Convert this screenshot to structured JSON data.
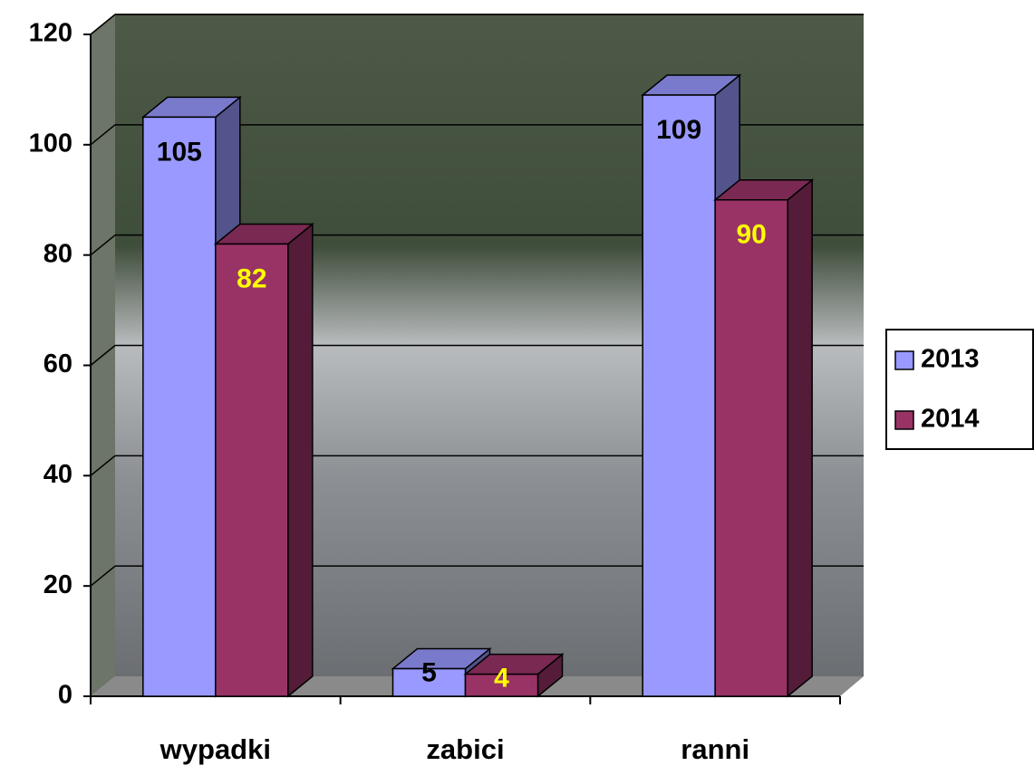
{
  "chart_data": {
    "type": "bar3d",
    "categories": [
      "wypadki",
      "zabici",
      "ranni"
    ],
    "series": [
      {
        "name": "2013",
        "color": "#9999ff",
        "label_color": "#000000",
        "values": [
          105,
          5,
          109
        ]
      },
      {
        "name": "2014",
        "color": "#993366",
        "label_color": "#ffff00",
        "values": [
          82,
          4,
          90
        ]
      }
    ],
    "ylim": [
      0,
      120
    ],
    "yticks": [
      0,
      20,
      40,
      60,
      80,
      100,
      120
    ],
    "grid": true,
    "legend": "right"
  }
}
